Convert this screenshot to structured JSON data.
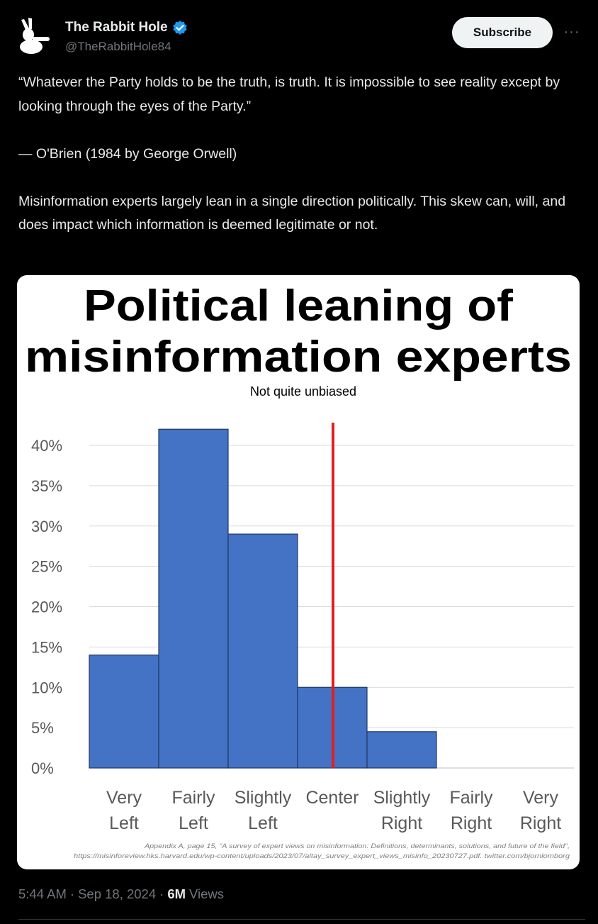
{
  "post": {
    "display_name": "The Rabbit Hole",
    "handle": "@TheRabbitHole84",
    "subscribe_label": "Subscribe",
    "more_label": "···",
    "quote_line": "“Whatever the Party holds to be the truth, is truth. It is impossible to see reality except by looking through the eyes of the Party.”",
    "attribution": "— O'Brien (1984 by George Orwell)",
    "body": "Misinformation experts largely lean in a single direction politically. This skew can, will, and does impact which information is deemed legitimate or not.",
    "time": "5:44 AM",
    "date": "Sep 18, 2024",
    "views_count": "6M",
    "views_label": "Views",
    "icons": {
      "avatar": "rabbit-avatar-icon",
      "verified": "verified-badge-icon",
      "more": "more-icon"
    },
    "colors": {
      "verified": "#1d9bf0",
      "accent": "#eff3f4"
    }
  },
  "chart_data": {
    "type": "bar",
    "title": "Political leaning of misinformation experts",
    "title_lines": [
      "Political leaning of",
      "misinformation experts"
    ],
    "subtitle": "Not quite unbiased",
    "categories": [
      [
        "Very",
        "Left"
      ],
      [
        "Fairly",
        "Left"
      ],
      [
        "Slightly",
        "Left"
      ],
      [
        "Center",
        ""
      ],
      [
        "Slightly",
        "Right"
      ],
      [
        "Fairly",
        "Right"
      ],
      [
        "Very",
        "Right"
      ]
    ],
    "values": [
      14,
      42,
      29,
      10,
      4.5,
      0,
      0
    ],
    "ylim": [
      0,
      40
    ],
    "yticks": [
      "0%",
      "5%",
      "10%",
      "15%",
      "20%",
      "25%",
      "30%",
      "35%",
      "40%"
    ],
    "ytick_values": [
      0,
      5,
      10,
      15,
      20,
      25,
      30,
      35,
      40
    ],
    "grid": true,
    "bar_color": "#4472c4",
    "center_line_color": "#e0201f",
    "source_lines": [
      "Appendix A, page 15, \"A survey of expert views on misinformation: Definitions, determinants, solutions, and future of the field\",",
      "https://misinforeview.hks.harvard.edu/wp-content/uploads/2023/07/altay_survey_expert_views_misinfo_20230727.pdf. twitter.com/bjornlomborg"
    ]
  }
}
